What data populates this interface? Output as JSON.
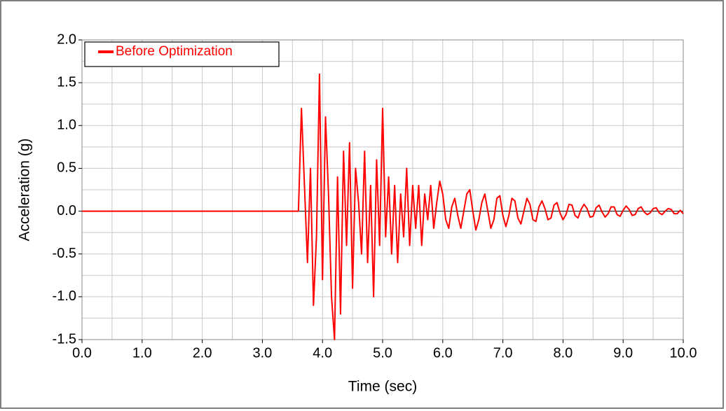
{
  "chart_data": {
    "type": "line",
    "xlabel": "Time (sec)",
    "ylabel": "Acceleration (g)",
    "xlim": [
      0,
      10
    ],
    "ylim": [
      -1.5,
      2.0
    ],
    "xticks": [
      {
        "value": 0,
        "label": "0.0"
      },
      {
        "value": 1,
        "label": "1.0"
      },
      {
        "value": 2,
        "label": "2.0"
      },
      {
        "value": 3,
        "label": "3.0"
      },
      {
        "value": 4,
        "label": "4.0"
      },
      {
        "value": 5,
        "label": "5.0"
      },
      {
        "value": 6,
        "label": "6.0"
      },
      {
        "value": 7,
        "label": "7.0"
      },
      {
        "value": 8,
        "label": "8.0"
      },
      {
        "value": 9,
        "label": "9.0"
      },
      {
        "value": 10,
        "label": "10.0"
      }
    ],
    "yticks": [
      -1.5,
      {
        "value": -1,
        "label": "-1.0"
      },
      -0.5,
      {
        "value": 0,
        "label": "0.0"
      },
      0.5,
      {
        "value": 1,
        "label": "1.0"
      },
      1.5,
      {
        "value": 2,
        "label": "2.0"
      }
    ],
    "grid": true,
    "legend": "upper left",
    "x": [
      0,
      3.6,
      3.65,
      3.7,
      3.75,
      3.8,
      3.85,
      3.9,
      3.95,
      4.0,
      4.05,
      4.1,
      4.15,
      4.2,
      4.25,
      4.3,
      4.35,
      4.4,
      4.45,
      4.5,
      4.55,
      4.6,
      4.65,
      4.7,
      4.75,
      4.8,
      4.85,
      4.9,
      4.95,
      5.0,
      5.05,
      5.1,
      5.15,
      5.2,
      5.25,
      5.3,
      5.35,
      5.4,
      5.45,
      5.5,
      5.55,
      5.6,
      5.65,
      5.7,
      5.75,
      5.8,
      5.85,
      5.9,
      5.95,
      6.0,
      6.05,
      6.1,
      6.15,
      6.2,
      6.25,
      6.3,
      6.35,
      6.4,
      6.45,
      6.5,
      6.55,
      6.6,
      6.65,
      6.7,
      6.75,
      6.8,
      6.85,
      6.9,
      6.95,
      7.0,
      7.05,
      7.1,
      7.15,
      7.2,
      7.25,
      7.3,
      7.35,
      7.4,
      7.45,
      7.5,
      7.55,
      7.6,
      7.65,
      7.7,
      7.75,
      7.8,
      7.85,
      7.9,
      7.95,
      8.0,
      8.05,
      8.1,
      8.15,
      8.2,
      8.25,
      8.3,
      8.35,
      8.4,
      8.45,
      8.5,
      8.55,
      8.6,
      8.65,
      8.7,
      8.75,
      8.8,
      8.85,
      8.9,
      8.95,
      9.0,
      9.05,
      9.1,
      9.15,
      9.2,
      9.25,
      9.3,
      9.35,
      9.4,
      9.45,
      9.5,
      9.55,
      9.6,
      9.65,
      9.7,
      9.75,
      9.8,
      9.85,
      9.9,
      9.95,
      10.0
    ],
    "series": [
      {
        "name": "Before Optimization",
        "color": "#ff0000",
        "values": [
          0,
          0,
          1.2,
          0.3,
          -0.6,
          0.5,
          -1.1,
          -0.3,
          1.6,
          -0.8,
          1.1,
          0.2,
          -1.0,
          -1.5,
          0.4,
          -1.2,
          0.7,
          -0.4,
          0.8,
          -0.9,
          0.5,
          0.1,
          -0.5,
          0.7,
          -0.6,
          0.3,
          -1.0,
          0.6,
          -0.4,
          1.2,
          -0.3,
          0.4,
          -0.5,
          0.3,
          -0.6,
          0.2,
          -0.3,
          0.5,
          -0.4,
          0.3,
          -0.2,
          0.3,
          -0.4,
          0.2,
          -0.1,
          0.3,
          -0.2,
          0.1,
          0.35,
          0.2,
          -0.1,
          -0.2,
          0.05,
          0.15,
          -0.05,
          -0.2,
          0.0,
          0.2,
          0.25,
          0.0,
          -0.22,
          -0.1,
          0.1,
          0.2,
          0.0,
          -0.2,
          -0.1,
          0.15,
          0.18,
          -0.05,
          -0.18,
          -0.05,
          0.15,
          0.12,
          -0.08,
          -0.15,
          0.0,
          0.15,
          0.08,
          -0.1,
          -0.12,
          0.05,
          0.12,
          0.03,
          -0.1,
          -0.08,
          0.07,
          0.1,
          -0.02,
          -0.1,
          -0.04,
          0.08,
          0.07,
          -0.05,
          -0.08,
          0.02,
          0.08,
          0.03,
          -0.07,
          -0.06,
          0.04,
          0.07,
          -0.01,
          -0.07,
          -0.03,
          0.05,
          0.05,
          -0.04,
          -0.06,
          0.01,
          0.06,
          0.02,
          -0.05,
          -0.04,
          0.03,
          0.05,
          -0.01,
          -0.04,
          -0.02,
          0.03,
          0.04,
          -0.02,
          -0.04,
          0.0,
          0.03,
          0.02,
          -0.03,
          -0.03,
          0.01,
          -0.03
        ]
      }
    ]
  }
}
